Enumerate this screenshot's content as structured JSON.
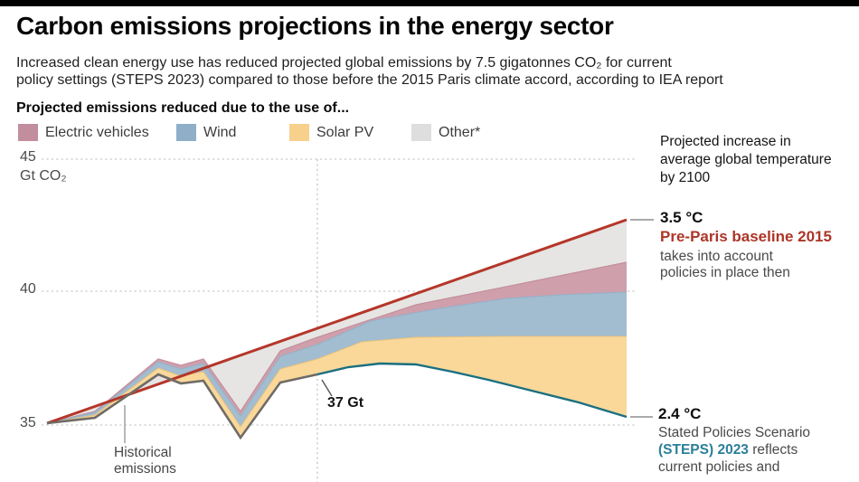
{
  "header": {
    "title": "Carbon emissions projections in the energy sector",
    "subtitle_line1": "Increased clean energy use has reduced projected global emissions by 7.5 gigatonnes CO₂ for current",
    "subtitle_line2": "policy settings (STEPS 2023) compared to those before the 2015 Paris climate accord, according to IEA report"
  },
  "chart_header": {
    "section_label": "Projected emissions reduced due to the use of..."
  },
  "legend": {
    "items": [
      {
        "label": "Electric vehicles",
        "color": "#c28e9e"
      },
      {
        "label": "Wind",
        "color": "#8fafc8"
      },
      {
        "label": "Solar PV",
        "color": "#f7d08c"
      },
      {
        "label": "Other*",
        "color": "#dedede"
      }
    ]
  },
  "axis": {
    "y45": "45",
    "unit": "Gt CO₂",
    "y40": "40",
    "y35": "35"
  },
  "labels": {
    "projection_start": "37 Gt",
    "historical": "Historical emissions"
  },
  "right_panel": {
    "heading_lines": [
      "Projected increase in",
      "average global temperature",
      "by 2100"
    ],
    "temp_high": "3.5 °C",
    "baseline_name": "Pre-Paris baseline 2015",
    "baseline_desc_line1": "takes into account",
    "baseline_desc_line2": "policies in place then",
    "temp_low": "2.4 °C",
    "steps_line1": "Stated Policies Scenario",
    "steps_name": "(STEPS) 2023",
    "steps_suffix": "reflects",
    "steps_line3": "current policies and"
  },
  "chart_data": {
    "type": "area",
    "title": "Projected emissions reduced due to the use of...",
    "unit": "Gt CO₂",
    "yticks": [
      35,
      40,
      45
    ],
    "ylim": [
      34,
      45.5
    ],
    "grid": "dotted horizontal lines at 35/40/45, dotted vertical divider at projection start (2023)",
    "legend_position": "top",
    "series_notes": {
      "historical_emissions_gt": [
        35.1,
        35.3,
        36.9,
        36.6,
        36.7,
        34.5,
        36.6,
        37.0
      ],
      "pre_paris_baseline_2015": {
        "start_gt": 35.1,
        "end_gt": 42.7,
        "end_temperature": "3.5 °C",
        "shape": "straight rising line"
      },
      "steps_2023": {
        "start_gt": 37.0,
        "peak_gt": 37.3,
        "end_gt": 35.3,
        "end_temperature": "2.4 °C"
      },
      "reduction_bands_at_end_gt": {
        "Solar PV": 3.0,
        "Wind": 1.7,
        "Electric vehicles": 1.1,
        "Other": 1.6,
        "total": 7.5
      }
    },
    "colors": {
      "baseline": "#b5362a",
      "steps": "#1a6f80",
      "historical": "#6f6b66",
      "solar": "#f9d89a",
      "wind": "#a2bcd0",
      "ev": "#cf9fac",
      "other": "#e6e5e3",
      "solar_edge": "#e9c27e",
      "wind_edge": "#93b2c8",
      "ev_edge": "#c4909f",
      "grid": "#bdbdbd"
    },
    "geometry": {
      "baseline": [
        [
          52,
          468
        ],
        [
          693,
          243
        ]
      ],
      "historical": [
        [
          52,
          468
        ],
        [
          105,
          462
        ],
        [
          175,
          414
        ],
        [
          200,
          424
        ],
        [
          225,
          421
        ],
        [
          266,
          484
        ],
        [
          310,
          423
        ],
        [
          351,
          414
        ]
      ],
      "steps": [
        [
          351,
          414
        ],
        [
          385,
          406
        ],
        [
          420,
          402
        ],
        [
          460,
          403
        ],
        [
          500,
          411
        ],
        [
          540,
          420
        ],
        [
          580,
          430
        ],
        [
          640,
          445
        ],
        [
          693,
          461
        ]
      ],
      "yellow_top": [
        [
          52,
          468
        ],
        [
          105,
          459
        ],
        [
          175,
          407
        ],
        [
          200,
          416
        ],
        [
          225,
          411
        ],
        [
          266,
          472
        ],
        [
          310,
          408
        ],
        [
          351,
          397
        ],
        [
          400,
          378
        ],
        [
          460,
          373
        ],
        [
          560,
          372
        ],
        [
          693,
          372
        ]
      ],
      "blue_top": [
        [
          52,
          468
        ],
        [
          105,
          456
        ],
        [
          175,
          400
        ],
        [
          200,
          408
        ],
        [
          225,
          402
        ],
        [
          266,
          460
        ],
        [
          310,
          394
        ],
        [
          351,
          381
        ],
        [
          410,
          355
        ],
        [
          480,
          342
        ],
        [
          560,
          330
        ],
        [
          620,
          326
        ],
        [
          693,
          323
        ]
      ],
      "pink_top": [
        [
          52,
          468
        ],
        [
          105,
          455
        ],
        [
          175,
          397
        ],
        [
          200,
          404
        ],
        [
          225,
          397
        ],
        [
          266,
          455
        ],
        [
          310,
          388
        ],
        [
          351,
          373
        ],
        [
          460,
          337
        ],
        [
          560,
          317
        ],
        [
          693,
          290
        ]
      ]
    }
  }
}
